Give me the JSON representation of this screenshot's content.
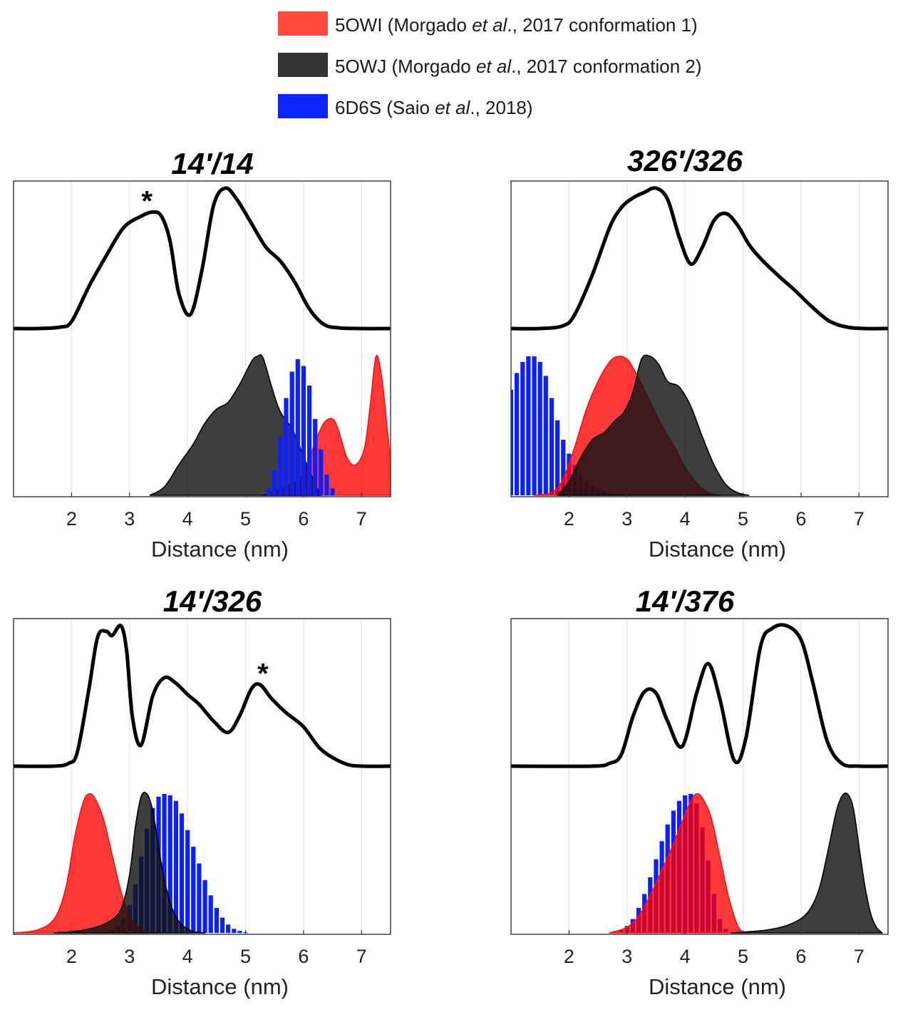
{
  "legend": [
    {
      "code": "5OWI",
      "label_pre": " (Morgado ",
      "label_italic": "et al",
      "label_post": "., 2017 conformation 1)",
      "color": "#fe4a3e"
    },
    {
      "code": "5OWJ",
      "label_pre": " (Morgado ",
      "label_italic": "et al",
      "label_post": "., 2017 conformation 2)",
      "color": "#333333"
    },
    {
      "code": "6D6S",
      "label_pre": " (Saio ",
      "label_italic": "et al",
      "label_post": "., 2018)",
      "color": "#0a25ff"
    }
  ],
  "chart_data": [
    {
      "type": "area",
      "title": "14′/14",
      "xlabel": "Distance (nm)",
      "xlim": [
        1,
        7.5
      ],
      "xticks": [
        2,
        3,
        4,
        5,
        6,
        7
      ],
      "grid": true,
      "annotations": [
        {
          "text": "*",
          "x": 3.3
        }
      ],
      "experimental": {
        "x": [
          1.0,
          1.4,
          1.8,
          2.0,
          2.3,
          2.6,
          2.9,
          3.2,
          3.4,
          3.55,
          3.7,
          3.85,
          4.05,
          4.25,
          4.45,
          4.65,
          4.85,
          5.1,
          5.35,
          5.6,
          5.85,
          6.1,
          6.35,
          6.6,
          7.0,
          7.5
        ],
        "y": [
          0,
          0,
          0.01,
          0.05,
          0.3,
          0.52,
          0.72,
          0.8,
          0.83,
          0.8,
          0.62,
          0.25,
          0.1,
          0.42,
          0.88,
          1.0,
          0.92,
          0.75,
          0.58,
          0.48,
          0.33,
          0.14,
          0.03,
          0.005,
          0,
          0
        ]
      },
      "series": [
        {
          "name": "5OWI",
          "style": "filled",
          "x": [
            5.3,
            5.8,
            6.0,
            6.2,
            6.35,
            6.5,
            6.6,
            6.75,
            6.9,
            7.05,
            7.15,
            7.25,
            7.35,
            7.45,
            7.5
          ],
          "y": [
            0,
            0.08,
            0.16,
            0.38,
            0.52,
            0.55,
            0.47,
            0.27,
            0.22,
            0.34,
            0.65,
            1.0,
            0.84,
            0.45,
            0.25
          ]
        },
        {
          "name": "5OWJ",
          "style": "filled",
          "x": [
            3.35,
            3.6,
            3.85,
            4.1,
            4.3,
            4.5,
            4.7,
            4.9,
            5.1,
            5.2,
            5.3,
            5.45,
            5.6,
            5.8,
            6.0,
            6.2,
            6.3
          ],
          "y": [
            0,
            0.06,
            0.22,
            0.37,
            0.52,
            0.62,
            0.67,
            0.8,
            0.96,
            1.0,
            0.99,
            0.78,
            0.6,
            0.48,
            0.28,
            0.08,
            0
          ]
        },
        {
          "name": "6D6S",
          "style": "bars",
          "x": [
            5.4,
            5.5,
            5.6,
            5.7,
            5.8,
            5.9,
            6.0,
            6.1,
            6.2,
            6.3,
            6.4,
            6.5
          ],
          "y": [
            0.05,
            0.18,
            0.42,
            0.7,
            0.89,
            0.98,
            0.93,
            0.79,
            0.55,
            0.33,
            0.15,
            0.05
          ]
        }
      ]
    },
    {
      "type": "area",
      "title": "326′/326",
      "xlabel": "Distance (nm)",
      "xlim": [
        1,
        7.5
      ],
      "xticks": [
        2,
        3,
        4,
        5,
        6,
        7
      ],
      "grid": true,
      "annotations": [],
      "experimental": {
        "x": [
          1.0,
          1.5,
          1.9,
          2.1,
          2.4,
          2.7,
          2.9,
          3.1,
          3.3,
          3.5,
          3.7,
          3.9,
          4.1,
          4.3,
          4.5,
          4.7,
          4.9,
          5.1,
          5.3,
          5.6,
          5.9,
          6.2,
          6.5,
          6.8,
          7.1,
          7.5
        ],
        "y": [
          0,
          0,
          0.02,
          0.1,
          0.38,
          0.72,
          0.86,
          0.93,
          0.97,
          1.0,
          0.92,
          0.65,
          0.46,
          0.58,
          0.77,
          0.82,
          0.74,
          0.6,
          0.5,
          0.38,
          0.27,
          0.15,
          0.05,
          0.01,
          0,
          0
        ]
      },
      "series": [
        {
          "name": "6D6S",
          "style": "bars",
          "x": [
            1.0,
            1.1,
            1.2,
            1.3,
            1.4,
            1.5,
            1.6,
            1.7,
            1.8,
            1.9,
            2.0,
            2.1,
            2.2,
            2.3,
            2.4,
            2.5,
            2.6,
            2.7,
            2.8,
            2.9,
            3.0
          ],
          "y": [
            0.76,
            0.88,
            0.96,
            1.0,
            1.0,
            0.96,
            0.86,
            0.7,
            0.54,
            0.4,
            0.3,
            0.22,
            0.15,
            0.1,
            0.07,
            0.05,
            0.03,
            0.02,
            0.01,
            0.005,
            0.002
          ]
        },
        {
          "name": "5OWI",
          "style": "filled",
          "x": [
            1.4,
            1.7,
            1.9,
            2.1,
            2.3,
            2.5,
            2.7,
            2.85,
            3.0,
            3.1,
            3.3,
            3.55,
            3.8,
            4.0,
            4.2,
            4.4,
            4.6
          ],
          "y": [
            0,
            0.02,
            0.12,
            0.35,
            0.62,
            0.82,
            0.96,
            1.0,
            0.98,
            0.92,
            0.76,
            0.54,
            0.36,
            0.2,
            0.09,
            0.02,
            0
          ]
        },
        {
          "name": "5OWJ",
          "style": "filled",
          "x": [
            1.8,
            2.0,
            2.2,
            2.4,
            2.6,
            2.8,
            2.95,
            3.1,
            3.25,
            3.4,
            3.55,
            3.7,
            3.9,
            4.1,
            4.3,
            4.5,
            4.7,
            4.9,
            5.1
          ],
          "y": [
            0,
            0.1,
            0.27,
            0.4,
            0.45,
            0.54,
            0.6,
            0.74,
            0.98,
            1.0,
            0.94,
            0.82,
            0.78,
            0.64,
            0.42,
            0.22,
            0.08,
            0.02,
            0
          ]
        }
      ]
    },
    {
      "type": "area",
      "title": "14′/326",
      "xlabel": "Distance (nm)",
      "xlim": [
        1,
        7.5
      ],
      "xticks": [
        2,
        3,
        4,
        5,
        6,
        7
      ],
      "grid": true,
      "annotations": [
        {
          "text": "*",
          "x": 5.3
        }
      ],
      "experimental": {
        "x": [
          1.0,
          1.7,
          1.95,
          2.1,
          2.3,
          2.45,
          2.6,
          2.7,
          2.85,
          2.95,
          3.05,
          3.2,
          3.4,
          3.6,
          3.8,
          4.0,
          4.2,
          4.45,
          4.7,
          4.9,
          5.1,
          5.25,
          5.45,
          5.7,
          6.0,
          6.3,
          6.7,
          7.0,
          7.5
        ],
        "y": [
          0,
          0,
          0.02,
          0.1,
          0.55,
          0.92,
          0.96,
          0.93,
          1.0,
          0.82,
          0.35,
          0.15,
          0.5,
          0.63,
          0.59,
          0.51,
          0.44,
          0.32,
          0.24,
          0.36,
          0.55,
          0.58,
          0.48,
          0.38,
          0.28,
          0.12,
          0.02,
          0,
          0
        ]
      },
      "series": [
        {
          "name": "6D6S",
          "style": "bars",
          "x": [
            2.7,
            2.8,
            2.9,
            3.0,
            3.1,
            3.2,
            3.3,
            3.4,
            3.5,
            3.6,
            3.7,
            3.8,
            3.9,
            4.0,
            4.1,
            4.2,
            4.3,
            4.4,
            4.5,
            4.6,
            4.7,
            4.8,
            4.9,
            5.0
          ],
          "y": [
            0.02,
            0.05,
            0.1,
            0.2,
            0.35,
            0.55,
            0.75,
            0.9,
            0.98,
            1.0,
            0.99,
            0.95,
            0.86,
            0.74,
            0.62,
            0.5,
            0.38,
            0.27,
            0.18,
            0.11,
            0.06,
            0.03,
            0.015,
            0.005
          ]
        },
        {
          "name": "5OWI",
          "style": "filled",
          "x": [
            1.0,
            1.4,
            1.7,
            1.9,
            2.05,
            2.2,
            2.3,
            2.4,
            2.55,
            2.7,
            2.85,
            3.0,
            3.15,
            3.3,
            3.5
          ],
          "y": [
            0,
            0.02,
            0.1,
            0.32,
            0.68,
            0.94,
            1.0,
            0.97,
            0.82,
            0.56,
            0.3,
            0.12,
            0.04,
            0.01,
            0
          ]
        },
        {
          "name": "5OWJ",
          "style": "filled",
          "x": [
            1.7,
            2.2,
            2.6,
            2.85,
            3.0,
            3.1,
            3.2,
            3.3,
            3.4,
            3.5,
            3.6,
            3.75,
            3.9,
            4.1,
            4.3
          ],
          "y": [
            0,
            0.02,
            0.07,
            0.17,
            0.42,
            0.76,
            0.98,
            1.0,
            0.88,
            0.62,
            0.38,
            0.16,
            0.06,
            0.01,
            0
          ]
        }
      ]
    },
    {
      "type": "area",
      "title": "14′/376",
      "xlabel": "Distance (nm)",
      "xlim": [
        1,
        7.5
      ],
      "xticks": [
        2,
        3,
        4,
        5,
        6,
        7
      ],
      "grid": true,
      "annotations": [],
      "experimental": {
        "x": [
          1.0,
          2.4,
          2.7,
          2.9,
          3.1,
          3.3,
          3.5,
          3.7,
          3.95,
          4.2,
          4.4,
          4.6,
          4.85,
          5.05,
          5.3,
          5.5,
          5.75,
          6.0,
          6.2,
          6.45,
          6.7,
          7.0,
          7.5
        ],
        "y": [
          0,
          0,
          0.02,
          0.08,
          0.35,
          0.53,
          0.52,
          0.32,
          0.14,
          0.52,
          0.73,
          0.48,
          0.04,
          0.2,
          0.85,
          0.98,
          1.0,
          0.9,
          0.6,
          0.18,
          0.02,
          0,
          0
        ]
      },
      "series": [
        {
          "name": "6D6S",
          "style": "bars",
          "x": [
            2.9,
            3.0,
            3.1,
            3.2,
            3.3,
            3.4,
            3.5,
            3.6,
            3.7,
            3.8,
            3.9,
            4.0,
            4.1,
            4.2,
            4.3,
            4.4,
            4.5,
            4.6,
            4.7
          ],
          "y": [
            0.02,
            0.05,
            0.1,
            0.18,
            0.28,
            0.4,
            0.53,
            0.66,
            0.78,
            0.88,
            0.95,
            0.99,
            1.0,
            0.93,
            0.76,
            0.52,
            0.28,
            0.1,
            0.03
          ]
        },
        {
          "name": "5OWI",
          "style": "filled",
          "x": [
            2.7,
            3.0,
            3.2,
            3.4,
            3.6,
            3.8,
            3.95,
            4.1,
            4.2,
            4.3,
            4.45,
            4.6,
            4.75,
            4.9,
            5.0
          ],
          "y": [
            0,
            0.04,
            0.12,
            0.27,
            0.45,
            0.64,
            0.8,
            0.95,
            1.0,
            0.97,
            0.83,
            0.55,
            0.26,
            0.06,
            0
          ]
        },
        {
          "name": "5OWJ",
          "style": "filled",
          "x": [
            4.8,
            5.4,
            5.8,
            6.1,
            6.3,
            6.45,
            6.6,
            6.7,
            6.8,
            6.9,
            7.0,
            7.1,
            7.2,
            7.3,
            7.4
          ],
          "y": [
            0,
            0.02,
            0.06,
            0.14,
            0.3,
            0.56,
            0.86,
            0.98,
            1.0,
            0.9,
            0.62,
            0.34,
            0.14,
            0.04,
            0
          ]
        }
      ]
    }
  ]
}
